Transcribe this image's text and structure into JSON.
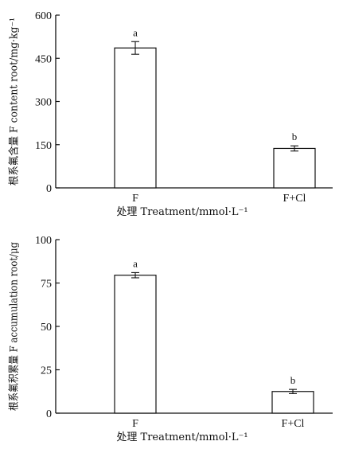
{
  "chart_data": [
    {
      "type": "bar",
      "categories": [
        "F",
        "F+Cl"
      ],
      "values": [
        486,
        137
      ],
      "errors": [
        22,
        9
      ],
      "significance": [
        "a",
        "b"
      ],
      "xlabel": "处理 Treatment/mmol·L⁻¹",
      "ylabel": "根系氟含量 F content root/mg·kg⁻¹",
      "ylim": [
        0,
        600
      ],
      "yticks": [
        0,
        150,
        300,
        450,
        600
      ]
    },
    {
      "type": "bar",
      "categories": [
        "F",
        "F+Cl"
      ],
      "values": [
        79.5,
        12.5
      ],
      "errors": [
        1.5,
        1.2
      ],
      "significance": [
        "a",
        "b"
      ],
      "xlabel": "处理 Treatment/mmol·L⁻¹",
      "ylabel": "根系氟积累量 F accumulation root/μg",
      "ylim": [
        0,
        100
      ],
      "yticks": [
        0,
        25,
        50,
        75,
        100
      ]
    }
  ]
}
